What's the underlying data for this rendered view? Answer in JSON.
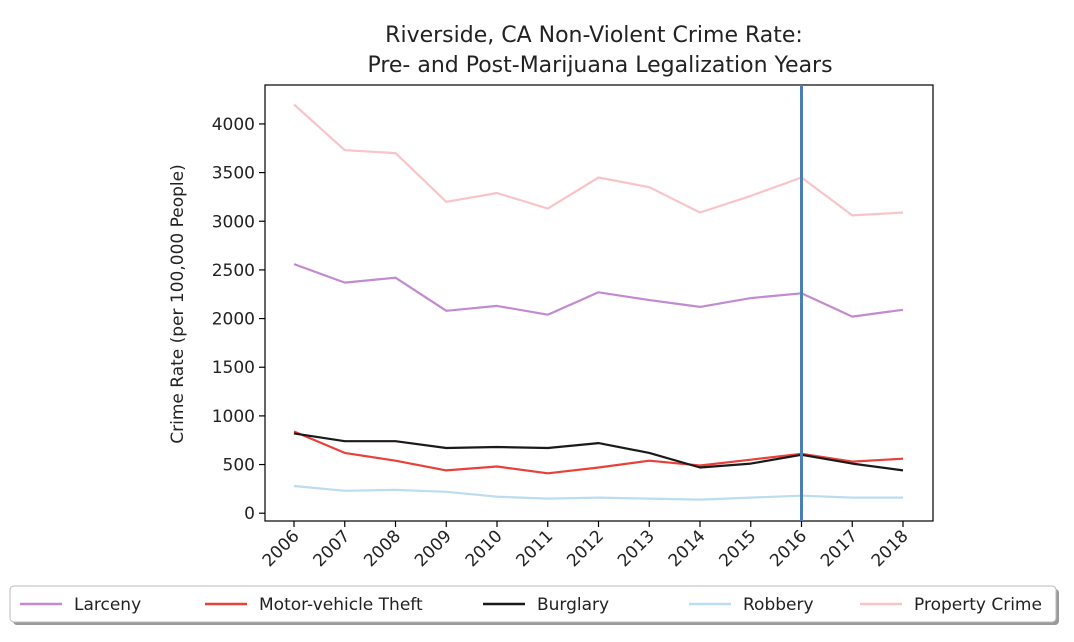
{
  "chart_data": {
    "type": "line",
    "title_line1": "Riverside, CA Non-Violent Crime Rate:",
    "title_line2": "Pre- and Post-Marijuana Legalization Years",
    "xlabel": "",
    "ylabel": "Crime Rate (per 100,000 People)",
    "x": [
      "2006",
      "2007",
      "2008",
      "2009",
      "2010",
      "2011",
      "2012",
      "2013",
      "2014",
      "2015",
      "2016",
      "2017",
      "2018"
    ],
    "ylim": [
      -80,
      4400
    ],
    "yticks": [
      0,
      500,
      1000,
      1500,
      2000,
      2500,
      3000,
      3500,
      4000
    ],
    "marker_line": {
      "x": "2016",
      "color": "#4a7fb5"
    },
    "legend_position": "bottom",
    "grid": false,
    "series": [
      {
        "name": "Larceny",
        "color": "#c28ad0",
        "values": [
          2560,
          2370,
          2420,
          2080,
          2130,
          2040,
          2270,
          2190,
          2120,
          2210,
          2260,
          2020,
          2090
        ]
      },
      {
        "name": "Motor-vehicle Theft",
        "color": "#e8403a",
        "values": [
          840,
          620,
          540,
          440,
          480,
          410,
          470,
          540,
          490,
          550,
          610,
          530,
          560
        ]
      },
      {
        "name": "Burglary",
        "color": "#1a1a1a",
        "values": [
          820,
          740,
          740,
          670,
          680,
          670,
          720,
          620,
          470,
          510,
          600,
          510,
          440
        ]
      },
      {
        "name": "Robbery",
        "color": "#bcdcef",
        "values": [
          280,
          230,
          240,
          220,
          170,
          150,
          160,
          150,
          140,
          160,
          180,
          160,
          160
        ]
      },
      {
        "name": "Property Crime",
        "color": "#f9c4c8",
        "values": [
          4200,
          3730,
          3700,
          3200,
          3290,
          3130,
          3450,
          3350,
          3090,
          3260,
          3450,
          3060,
          3090
        ]
      }
    ]
  }
}
